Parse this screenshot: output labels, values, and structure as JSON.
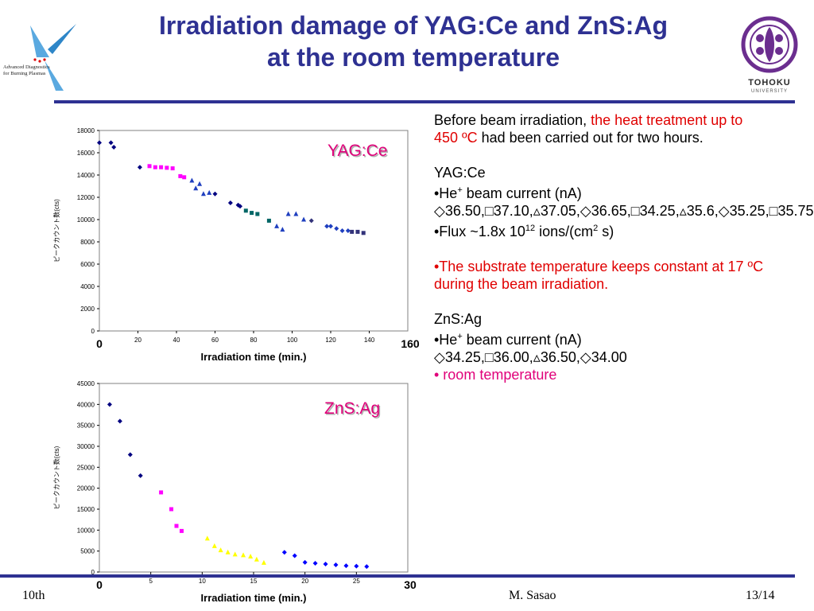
{
  "slide": {
    "title_line1": "Irradiation damage of YAG:Ce and ZnS:Ag",
    "title_line2": "at the room temperature",
    "logo_left_text1": "Advanced Diagnostics",
    "logo_left_text2": "for Burning Plasmas",
    "logo_right_text1": "TOHOKU",
    "logo_right_text2": "UNIVERSITY",
    "footer_left": "10th",
    "footer_center": "M. Sasao",
    "footer_right": "13/14"
  },
  "panel": {
    "intro_a": "Before beam irradiation, ",
    "intro_red": "the heat treatment up to 450 ºC",
    "intro_b": " had been carried out for two hours.",
    "yag_heading": "YAG:Ce",
    "yag_current_prefix": "•He",
    "yag_current_sup": "+",
    "yag_current_rest": " beam current (nA)",
    "yag_current_values": "◇36.50,□37.10,▵37.05,◇36.65,□34.25,▵35.6,◇35.25,□35.75",
    "flux_a": "•Flux ~1.8x 10",
    "flux_sup1": "12",
    "flux_b": " ions/(cm",
    "flux_sup2": "2",
    "flux_c": " s)",
    "substrate_note": "•The substrate temperature keeps constant at 17 ºC during the beam irradiation.",
    "zns_heading": "ZnS:Ag",
    "zns_current_prefix": "•He",
    "zns_current_sup": "+",
    "zns_current_rest": " beam current (nA)",
    "zns_current_values": "◇34.25,□36.00,▵36.50,◇34.00",
    "room_temp": "• room temperature"
  },
  "chart_data": [
    {
      "type": "scatter",
      "label": "YAG:Ce",
      "xlabel": "Irradiation time (min.)",
      "ylabel": "ピークカウント数(cts)",
      "x_ticks": [
        "20",
        "40",
        "60",
        "80",
        "100",
        "120",
        "140"
      ],
      "x_tick_values": [
        20,
        40,
        60,
        80,
        100,
        120,
        140
      ],
      "x_end_labels": [
        "0",
        "160"
      ],
      "y_ticks": [
        "0",
        "2000",
        "4000",
        "6000",
        "8000",
        "10000",
        "12000",
        "14000",
        "16000",
        "18000"
      ],
      "xlim": [
        0,
        160
      ],
      "ylim": [
        0,
        18000
      ],
      "colors": {
        "navy": "#000080",
        "magenta": "#ff00ff",
        "blue": "#1f3fbf",
        "teal": "#006666",
        "slate": "#33337a"
      },
      "series": [
        {
          "color": "navy",
          "shape": "diamond",
          "x": [
            0,
            6,
            7.5
          ],
          "y": [
            16900,
            16900,
            16500
          ]
        },
        {
          "color": "navy",
          "shape": "diamond",
          "x": [
            21
          ],
          "y": [
            14700
          ]
        },
        {
          "color": "magenta",
          "shape": "square",
          "x": [
            26,
            29,
            32,
            35,
            38
          ],
          "y": [
            14800,
            14700,
            14700,
            14650,
            14600
          ]
        },
        {
          "color": "magenta",
          "shape": "square",
          "x": [
            42,
            44
          ],
          "y": [
            13900,
            13800
          ]
        },
        {
          "color": "blue",
          "shape": "triangle",
          "x": [
            48,
            50,
            52,
            54,
            57
          ],
          "y": [
            13500,
            12800,
            13200,
            12300,
            12400
          ]
        },
        {
          "color": "navy",
          "shape": "diamond",
          "x": [
            60
          ],
          "y": [
            12300
          ]
        },
        {
          "color": "navy",
          "shape": "diamond",
          "x": [
            68,
            72,
            73
          ],
          "y": [
            11500,
            11300,
            11200
          ]
        },
        {
          "color": "teal",
          "shape": "square",
          "x": [
            76,
            79,
            82
          ],
          "y": [
            10800,
            10600,
            10500
          ]
        },
        {
          "color": "teal",
          "shape": "square",
          "x": [
            88
          ],
          "y": [
            9900
          ]
        },
        {
          "color": "blue",
          "shape": "triangle",
          "x": [
            92,
            95,
            98,
            102,
            106
          ],
          "y": [
            9400,
            9100,
            10500,
            10500,
            10000
          ]
        },
        {
          "color": "slate",
          "shape": "diamond",
          "x": [
            110
          ],
          "y": [
            9900
          ]
        },
        {
          "color": "blue",
          "shape": "diamond",
          "x": [
            118,
            120,
            123,
            126,
            129
          ],
          "y": [
            9400,
            9400,
            9200,
            9000,
            9000
          ]
        },
        {
          "color": "slate",
          "shape": "square",
          "x": [
            131,
            134,
            137
          ],
          "y": [
            8900,
            8900,
            8800
          ]
        }
      ]
    },
    {
      "type": "scatter",
      "label": "ZnS:Ag",
      "xlabel": "Irradiation time (min.)",
      "ylabel": "ピークカウント数(cts)",
      "x_ticks": [
        "5",
        "10",
        "15",
        "20",
        "25"
      ],
      "x_tick_values": [
        5,
        10,
        15,
        20,
        25
      ],
      "x_end_labels": [
        "0",
        "30"
      ],
      "y_ticks": [
        "0",
        "5000",
        "10000",
        "15000",
        "20000",
        "25000",
        "30000",
        "35000",
        "40000",
        "45000"
      ],
      "xlim": [
        0,
        30
      ],
      "ylim": [
        0,
        45000
      ],
      "colors": {
        "navy": "#000080",
        "magenta": "#ff00ff",
        "yellow": "#ffff00",
        "blue": "#0000ff"
      },
      "series": [
        {
          "color": "navy",
          "shape": "diamond",
          "x": [
            1,
            2,
            3,
            4
          ],
          "y": [
            40000,
            36000,
            28000,
            23000
          ]
        },
        {
          "color": "magenta",
          "shape": "square",
          "x": [
            6,
            7,
            7.5,
            8
          ],
          "y": [
            19000,
            15000,
            11000,
            9800
          ]
        },
        {
          "color": "yellow",
          "shape": "triangle",
          "x": [
            10.5,
            11.2,
            11.8,
            12.5,
            13.2,
            14,
            14.7,
            15.3,
            16
          ],
          "y": [
            8000,
            6200,
            5200,
            4700,
            4200,
            4000,
            3700,
            3000,
            2200
          ]
        },
        {
          "color": "blue",
          "shape": "diamond",
          "x": [
            18,
            19,
            20,
            21,
            22,
            23,
            24,
            25,
            26
          ],
          "y": [
            4700,
            3900,
            2300,
            2100,
            1900,
            1700,
            1500,
            1400,
            1300
          ]
        }
      ]
    }
  ]
}
